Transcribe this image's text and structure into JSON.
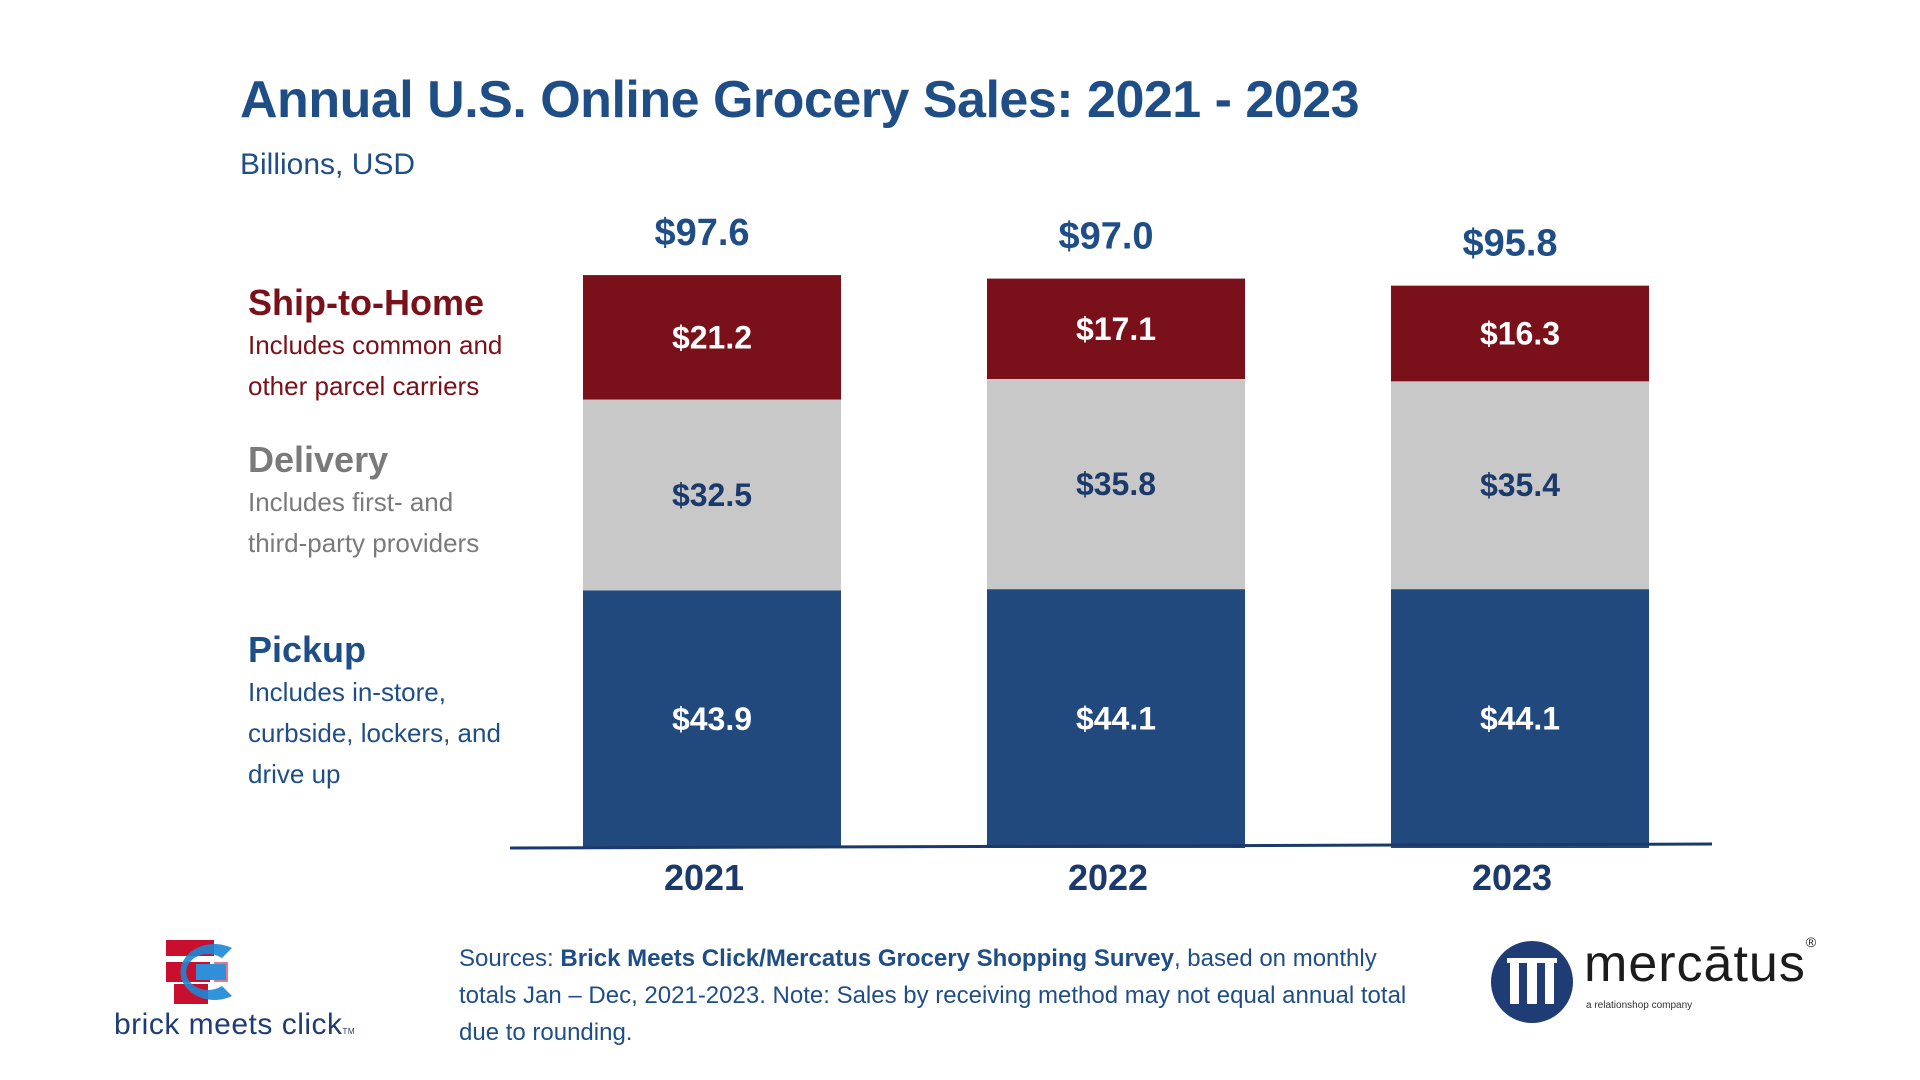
{
  "title": "Annual U.S. Online Grocery Sales: 2021 - 2023",
  "subtitle": "Billions, USD",
  "legend": {
    "ship": {
      "head": "Ship-to-Home",
      "desc1": "Includes common and",
      "desc2": "other parcel carriers"
    },
    "delivery": {
      "head": "Delivery",
      "desc1": "Includes first- and",
      "desc2": "third-party providers"
    },
    "pickup": {
      "head": "Pickup",
      "desc1": "Includes in-store,",
      "desc2": "curbside, lockers, and",
      "desc3": "drive up"
    }
  },
  "sources": {
    "prefix": "Sources: ",
    "bold": "Brick Meets Click/Mercatus Grocery Shopping Survey",
    "rest": ", based on monthly totals Jan – Dec, 2021-2023.  Note: Sales by receiving method may not equal annual total due to rounding."
  },
  "logos": {
    "bmc_text": "brick meets click",
    "bmc_tm": "TM",
    "mercatus_word": "mercātus",
    "mercatus_reg": "®",
    "mercatus_tagline": "a relationshop company"
  },
  "colors": {
    "ship": "#7a111a",
    "delivery": "#c8c8c8",
    "pickup": "#21497e",
    "navy": "#1f4e86",
    "label_dark": "#1b3a6b"
  },
  "chart_data": {
    "type": "bar",
    "stacked": true,
    "categories": [
      "2021",
      "2022",
      "2023"
    ],
    "series": [
      {
        "name": "Pickup",
        "values": [
          43.9,
          44.1,
          44.1
        ],
        "labels": [
          "$43.9",
          "$44.1",
          "$44.1"
        ]
      },
      {
        "name": "Delivery",
        "values": [
          32.5,
          35.8,
          35.4
        ],
        "labels": [
          "$32.5",
          "$35.8",
          "$35.4"
        ]
      },
      {
        "name": "Ship-to-Home",
        "values": [
          21.2,
          17.1,
          16.3
        ],
        "labels": [
          "$21.2",
          "$17.1",
          "$16.3"
        ]
      }
    ],
    "totals": [
      97.6,
      97.0,
      95.8
    ],
    "total_labels": [
      "$97.6",
      "$97.0",
      "$95.8"
    ],
    "ylim": [
      0,
      100
    ]
  }
}
